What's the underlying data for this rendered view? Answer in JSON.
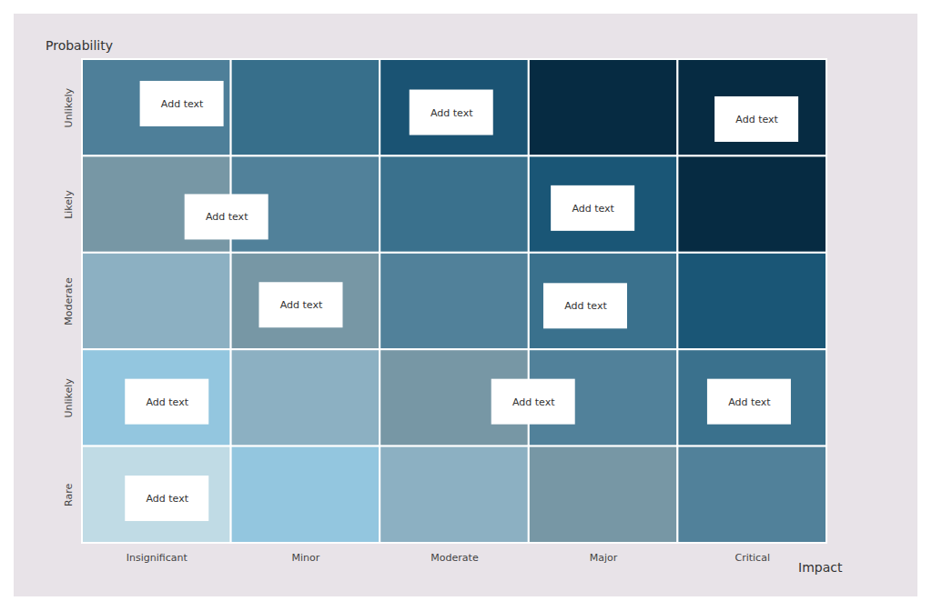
{
  "chart_data": {
    "type": "heatmap",
    "x_label": "Impact",
    "y_label": "Probability",
    "x_categories": [
      "Insignificant",
      "Minor",
      "Moderate",
      "Major",
      "Critical"
    ],
    "y_categories": [
      "Unlikely",
      "Likely",
      "Moderate",
      "Unlikely",
      "Rare"
    ],
    "cell_colors": [
      [
        "#4e7f99",
        "#376f8b",
        "#1a5373",
        "#062b42",
        "#062b42"
      ],
      [
        "#7797a5",
        "#51819a",
        "#3a718d",
        "#1a5676",
        "#062b42"
      ],
      [
        "#8cb0c2",
        "#7797a5",
        "#51819a",
        "#3a718d",
        "#1a5676"
      ],
      [
        "#93c6df",
        "#8cb0c2",
        "#7797a5",
        "#51819a",
        "#3a718d"
      ],
      [
        "#c0dbe5",
        "#93c6df",
        "#8cb0c2",
        "#7797a5",
        "#51819a"
      ]
    ],
    "annotations": [
      {
        "text": "Add text",
        "x": 0.17,
        "y": -0.04
      },
      {
        "text": "Add text",
        "x": 1.98,
        "y": 0.05
      },
      {
        "text": "Add text",
        "x": 4.03,
        "y": 0.12
      },
      {
        "text": "Add text",
        "x": 0.47,
        "y": 1.13
      },
      {
        "text": "Add text",
        "x": 2.93,
        "y": 1.04
      },
      {
        "text": "Add text",
        "x": 0.97,
        "y": 2.04
      },
      {
        "text": "Add text",
        "x": 2.88,
        "y": 2.05
      },
      {
        "text": "Add text",
        "x": 0.07,
        "y": 3.04
      },
      {
        "text": "Add text",
        "x": 2.53,
        "y": 3.04
      },
      {
        "text": "Add text",
        "x": 3.98,
        "y": 3.04
      },
      {
        "text": "Add text",
        "x": 0.07,
        "y": 4.04
      }
    ]
  }
}
